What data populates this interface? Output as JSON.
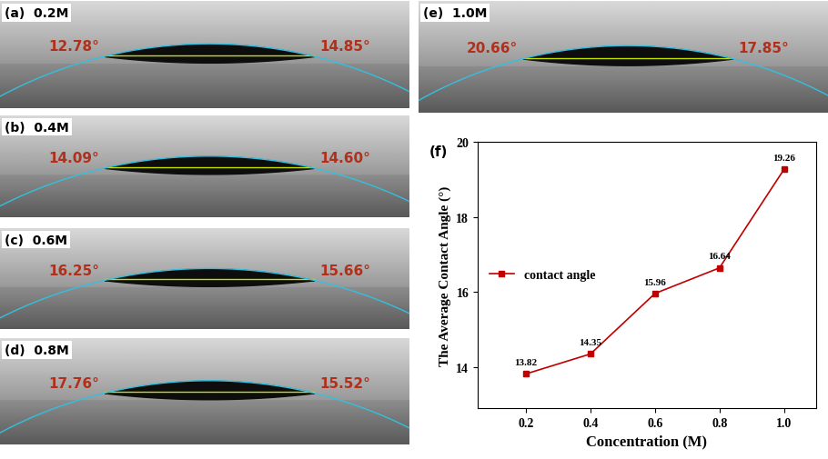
{
  "panels": [
    {
      "label": "(a)",
      "concentration": "0.2M",
      "left_angle": "12.78°",
      "right_angle": "14.85°"
    },
    {
      "label": "(b)",
      "concentration": "0.4M",
      "left_angle": "14.09°",
      "right_angle": "14.60°"
    },
    {
      "label": "(c)",
      "concentration": "0.6M",
      "left_angle": "16.25°",
      "right_angle": "15.66°"
    },
    {
      "label": "(d)",
      "concentration": "0.8M",
      "left_angle": "17.76°",
      "right_angle": "15.52°"
    },
    {
      "label": "(e)",
      "concentration": "1.0M",
      "left_angle": "20.66°",
      "right_angle": "17.85°"
    }
  ],
  "chart_data": {
    "type": "line",
    "title": "(f)",
    "x": [
      0.2,
      0.4,
      0.6,
      0.8,
      1.0
    ],
    "series": [
      {
        "name": "contact angle",
        "color": "#c00000",
        "marker": "square",
        "line_style": "solid",
        "values": [
          13.82,
          14.35,
          15.96,
          16.64,
          19.26
        ]
      }
    ],
    "data_labels": true,
    "xlabel": "Concentration (M)",
    "ylabel": "The Average Contact Angle (°)",
    "xlim": [
      0.05,
      1.1
    ],
    "ylim": [
      12.9,
      20
    ],
    "xticks": [
      0.2,
      0.4,
      0.6,
      0.8,
      1.0
    ],
    "yticks": [
      14,
      16,
      18,
      20
    ],
    "legend": "center left",
    "grid": false
  }
}
